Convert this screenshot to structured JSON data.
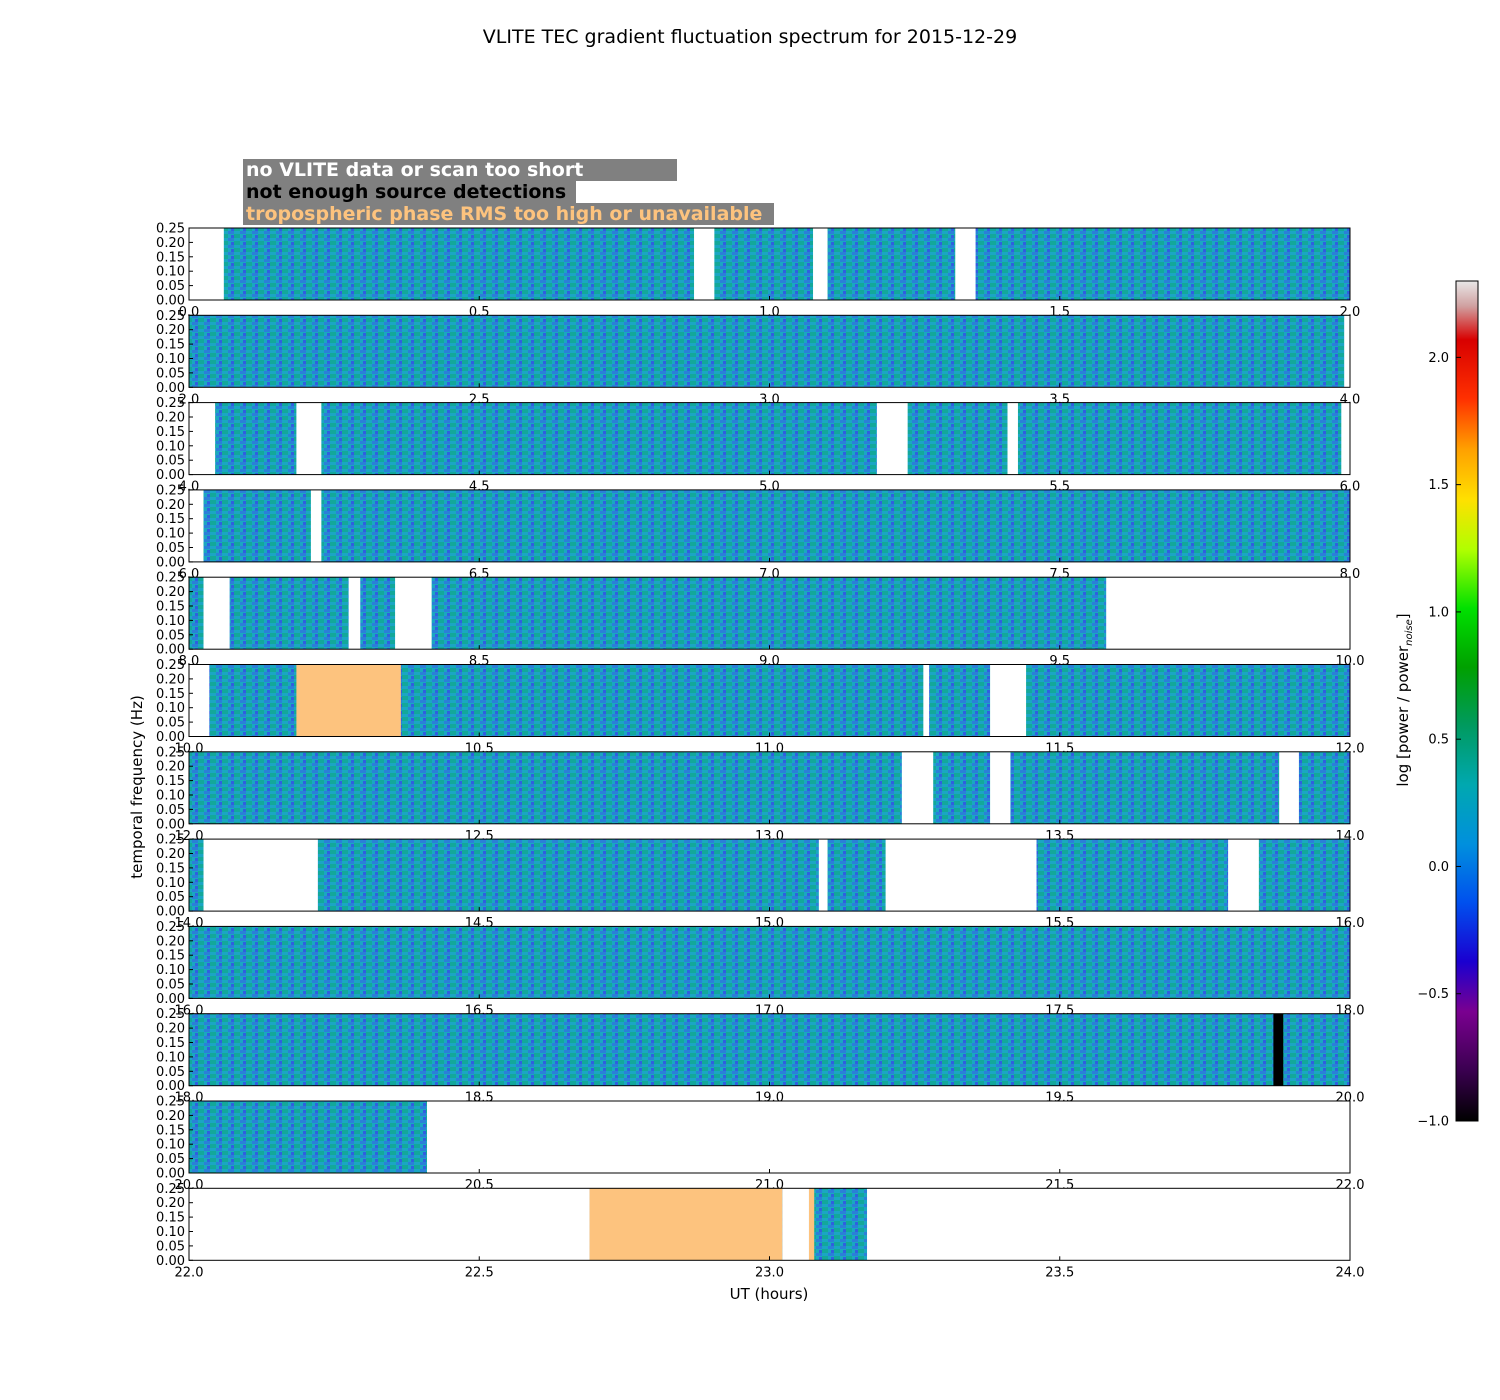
{
  "chart_data": {
    "type": "heatmap",
    "title": "VLITE TEC gradient fluctuation spectrum for 2015-12-29",
    "xlabel": "UT (hours)",
    "ylabel": "temporal frequency (Hz)",
    "colorbar_label": "log [power / power",
    "colorbar_label_sub": "noise",
    "colorbar_label_end": "]",
    "colorbar_range": [
      -1.0,
      2.3
    ],
    "colorbar_ticks": [
      "2.0",
      "1.5",
      "1.0",
      "0.5",
      "0.0",
      "−0.5",
      "−1.0"
    ],
    "colorbar_tick_values": [
      2.0,
      1.5,
      1.0,
      0.5,
      0.0,
      -0.5,
      -1.0
    ],
    "yticks": [
      "0.00",
      "0.05",
      "0.10",
      "0.15",
      "0.20",
      "0.25"
    ],
    "ylim": [
      0,
      0.25
    ],
    "legend": [
      {
        "label": "no VLITE data or scan too short",
        "text_color": "#ffffff"
      },
      {
        "label": "not enough source detections",
        "text_color": "#000000"
      },
      {
        "label": "tropospheric phase RMS too high or unavailable",
        "text_color": "#fdc37e"
      }
    ],
    "colors": {
      "no_data": "#ffffff",
      "too_few_detections": "#000000",
      "troposphere_flag": "#fdc37e",
      "legend_background": "#808080"
    },
    "panels": [
      {
        "xlim": [
          0,
          2
        ],
        "xticks": [
          "0.0",
          "0.5",
          "1.0",
          "1.5",
          "2.0"
        ],
        "gaps": [
          [
            0,
            0.06
          ],
          [
            0.87,
            0.905
          ],
          [
            1.075,
            1.1
          ],
          [
            1.32,
            1.355
          ]
        ],
        "black": [],
        "orange": []
      },
      {
        "xlim": [
          2,
          4
        ],
        "xticks": [
          "2.0",
          "2.5",
          "3.0",
          "3.5",
          "4.0"
        ],
        "gaps": [
          [
            3.99,
            4.0
          ]
        ],
        "black": [],
        "orange": []
      },
      {
        "xlim": [
          4,
          6
        ],
        "xticks": [
          "4.0",
          "4.5",
          "5.0",
          "5.5",
          "6.0"
        ],
        "gaps": [
          [
            4.0,
            4.045
          ],
          [
            4.185,
            4.228
          ],
          [
            5.185,
            5.238
          ],
          [
            5.41,
            5.428
          ],
          [
            5.985,
            6.0
          ]
        ],
        "black": [],
        "orange": []
      },
      {
        "xlim": [
          6,
          8
        ],
        "xticks": [
          "6.0",
          "6.5",
          "7.0",
          "7.5",
          "8.0"
        ],
        "gaps": [
          [
            6.0,
            6.025
          ],
          [
            6.21,
            6.228
          ]
        ],
        "black": [],
        "orange": []
      },
      {
        "xlim": [
          8,
          10
        ],
        "xticks": [
          "8.0",
          "8.5",
          "9.0",
          "9.5",
          "10.0"
        ],
        "gaps": [
          [
            8.025,
            8.07
          ],
          [
            8.275,
            8.295
          ],
          [
            8.355,
            8.418
          ],
          [
            9.58,
            10.0
          ]
        ],
        "black": [],
        "orange": []
      },
      {
        "xlim": [
          10,
          12
        ],
        "xticks": [
          "10.0",
          "10.5",
          "11.0",
          "11.5",
          "12.0"
        ],
        "gaps": [
          [
            10.0,
            10.035
          ],
          [
            11.265,
            11.275
          ],
          [
            11.38,
            11.442
          ]
        ],
        "black": [],
        "orange": [
          [
            10.185,
            10.365
          ]
        ]
      },
      {
        "xlim": [
          12,
          14
        ],
        "xticks": [
          "12.0",
          "12.5",
          "13.0",
          "13.5",
          "14.0"
        ],
        "gaps": [
          [
            13.228,
            13.282
          ],
          [
            13.38,
            13.415
          ],
          [
            13.878,
            13.912
          ]
        ],
        "black": [],
        "orange": []
      },
      {
        "xlim": [
          14,
          16
        ],
        "xticks": [
          "14.0",
          "14.5",
          "15.0",
          "15.5",
          "16.0"
        ],
        "gaps": [
          [
            14.025,
            14.222
          ],
          [
            15.085,
            15.1
          ],
          [
            15.2,
            15.46
          ],
          [
            15.79,
            15.843
          ]
        ],
        "black": [],
        "orange": []
      },
      {
        "xlim": [
          16,
          18
        ],
        "xticks": [
          "16.0",
          "16.5",
          "17.0",
          "17.5",
          "18.0"
        ],
        "gaps": [],
        "black": [],
        "orange": []
      },
      {
        "xlim": [
          18,
          20
        ],
        "xticks": [
          "18.0",
          "18.5",
          "19.0",
          "19.5",
          "20.0"
        ],
        "gaps": [],
        "black": [
          [
            19.868,
            19.885
          ]
        ],
        "orange": []
      },
      {
        "xlim": [
          20,
          22
        ],
        "xticks": [
          "20.0",
          "20.5",
          "21.0",
          "21.5",
          "22.0"
        ],
        "gaps": [
          [
            20.41,
            22.0
          ]
        ],
        "black": [],
        "orange": []
      },
      {
        "xlim": [
          22,
          24
        ],
        "xticks": [
          "22.0",
          "22.5",
          "23.0",
          "23.5",
          "24.0"
        ],
        "gaps": [
          [
            22.0,
            22.69
          ],
          [
            23.022,
            23.068
          ],
          [
            23.078,
            23.075
          ],
          [
            23.168,
            24.0
          ]
        ],
        "black": [],
        "orange": [
          [
            22.69,
            23.022
          ],
          [
            23.068,
            23.077
          ]
        ]
      }
    ]
  }
}
